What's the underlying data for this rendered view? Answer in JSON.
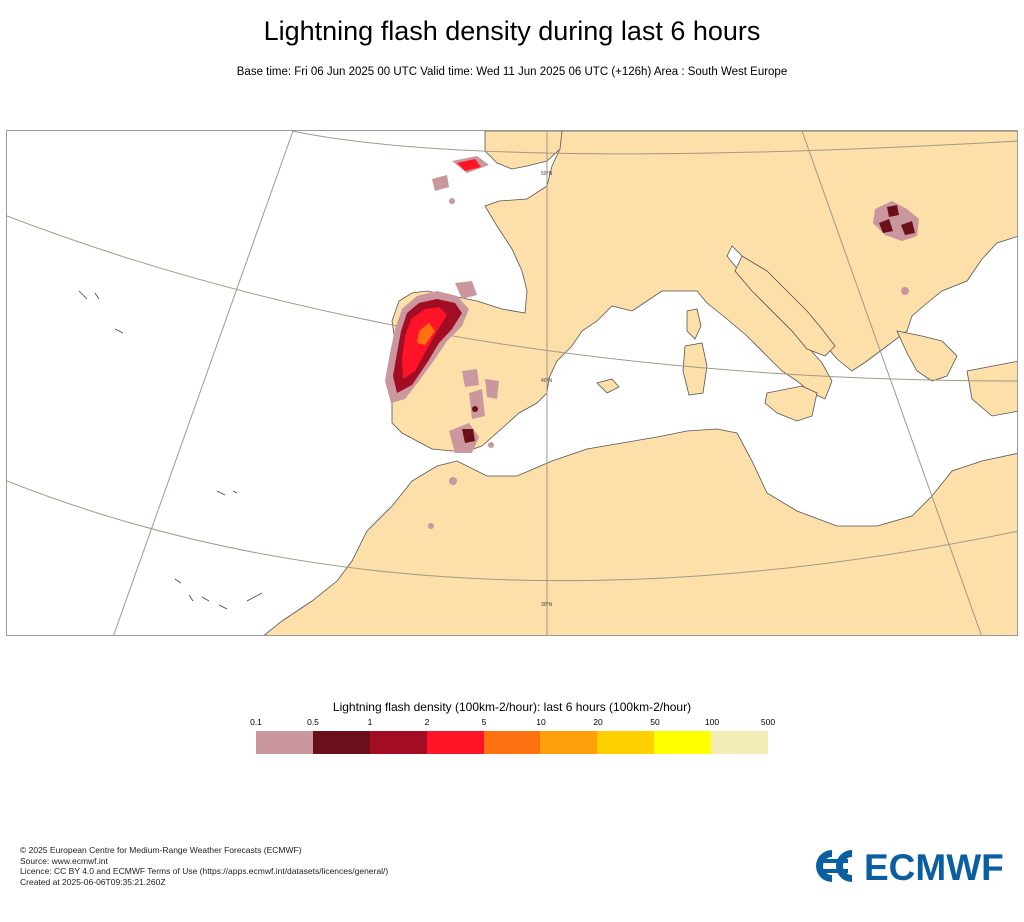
{
  "title": "Lightning flash density during last 6 hours",
  "subtitle": "Base time: Fri 06 Jun 2025 00 UTC Valid time: Wed 11 Jun 2025 06 UTC (+126h) Area : South West Europe",
  "map": {
    "area": "South West Europe",
    "land_color": "#fcdfa9",
    "sea_color": "#ffffff",
    "lat_labels": [
      "50°N",
      "40°N",
      "30°N"
    ],
    "features": [
      "iberia-lightning-area",
      "brittany-lightning-area",
      "spain-interior-lightning-area",
      "andalusia-lightning-area",
      "romania-lightning-area",
      "morocco-lightning-dot"
    ]
  },
  "legend": {
    "title": "Lightning flash density (100km-2/hour): last 6 hours (100km-2/hour)",
    "ticks": [
      "0.1",
      "0.5",
      "1",
      "2",
      "5",
      "10",
      "20",
      "50",
      "100",
      "500"
    ],
    "colors": [
      "#c9979d",
      "#6b0f1a",
      "#a30d24",
      "#ff1326",
      "#ff7110",
      "#ff9f0a",
      "#ffd000",
      "#ffff00",
      "#f2ecb5"
    ]
  },
  "credits": {
    "line1": "© 2025 European Centre for Medium-Range Weather Forecasts (ECMWF)",
    "line2": "Source: www.ecmwf.int",
    "line3": "Licence: CC BY 4.0 and ECMWF Terms of Use (https://apps.ecmwf.int/datasets/licences/general/)",
    "line4": "Created at 2025-06-06T09:35:21.260Z"
  },
  "logo": {
    "text": "ECMWF",
    "color": "#0a5fa0"
  }
}
